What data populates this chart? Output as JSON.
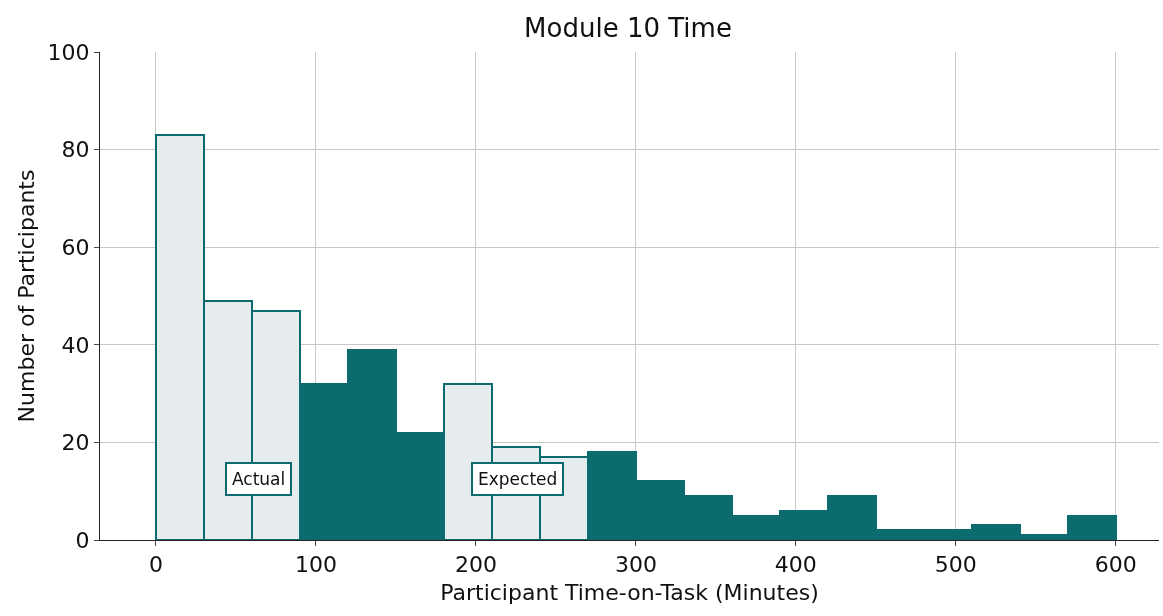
{
  "chart_data": {
    "type": "histogram",
    "title": "Module 10 Time",
    "xlabel": "Participant Time-on-Task (Minutes)",
    "ylabel": "Number of Participants",
    "bins": [
      0,
      30,
      60,
      90,
      120,
      150,
      180,
      210,
      240,
      270,
      300,
      330,
      360,
      390,
      420,
      450,
      480,
      510,
      540,
      570,
      600
    ],
    "values": [
      83,
      49,
      47,
      32,
      39,
      22,
      32,
      19,
      17,
      18,
      12,
      9,
      5,
      6,
      9,
      2,
      2,
      3,
      1,
      5
    ],
    "colors": [
      "#e6ecee",
      "#e6ecee",
      "#e6ecee",
      "#0b6b6e",
      "#0b6b6e",
      "#0b6b6e",
      "#e6ecee",
      "#e6ecee",
      "#e6ecee",
      "#0b6b6e",
      "#0b6b6e",
      "#0b6b6e",
      "#0b6b6e",
      "#0b6b6e",
      "#0b6b6e",
      "#0b6b6e",
      "#0b6b6e",
      "#0b6b6e",
      "#0b6b6e",
      "#0b6b6e"
    ],
    "annotations": [
      "Actual",
      "Expected"
    ],
    "xlim": [
      -35,
      627
    ],
    "xticks": [
      0,
      100,
      200,
      300,
      400,
      500,
      600
    ],
    "ylim": [
      0,
      100
    ],
    "yticks": [
      0,
      20,
      40,
      60,
      80,
      100
    ],
    "grid": true,
    "legend": false
  }
}
